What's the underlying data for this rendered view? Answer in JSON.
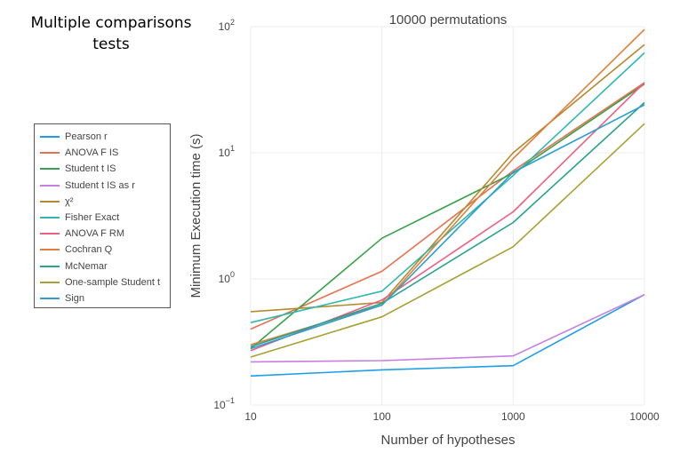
{
  "side_title_lines": [
    "Multiple comparisons",
    "tests"
  ],
  "chart_data": {
    "type": "line",
    "title": "10000 permutations",
    "xlabel": "Number of hypotheses",
    "ylabel": "Minimum Execution time (s)",
    "x_scale": "log",
    "y_scale": "log",
    "x": [
      10,
      100,
      1000,
      10000
    ],
    "xlim": [
      10,
      10000
    ],
    "ylim": [
      0.1,
      100
    ],
    "x_ticks": [
      {
        "value": 10,
        "label": "10"
      },
      {
        "value": 100,
        "label": "100"
      },
      {
        "value": 1000,
        "label": "1000"
      },
      {
        "value": 10000,
        "label": "10000"
      }
    ],
    "y_ticks": [
      {
        "value": 0.1,
        "base": "10",
        "exp": "−1"
      },
      {
        "value": 1,
        "base": "10",
        "exp": "0"
      },
      {
        "value": 10,
        "base": "10",
        "exp": "1"
      },
      {
        "value": 100,
        "base": "10",
        "exp": "2"
      }
    ],
    "grid": true,
    "legend_position": "left, outside plot",
    "series": [
      {
        "name": "Pearson r",
        "color": "#1f9ee8",
        "values": [
          0.17,
          0.19,
          0.205,
          0.75
        ]
      },
      {
        "name": "ANOVA F IS",
        "color": "#e8704f",
        "values": [
          0.4,
          1.15,
          7.2,
          36
        ]
      },
      {
        "name": "Student t IS",
        "color": "#3aa14a",
        "values": [
          0.28,
          2.1,
          6.9,
          35
        ]
      },
      {
        "name": "Student t IS as r",
        "color": "#c77ee0",
        "values": [
          0.22,
          0.225,
          0.245,
          0.75
        ]
      },
      {
        "name": "χ²",
        "color": "#b38a2e",
        "values": [
          0.55,
          0.65,
          10,
          72
        ]
      },
      {
        "name": "Fisher Exact",
        "color": "#2fb8b0",
        "values": [
          0.45,
          0.8,
          6.6,
          62
        ]
      },
      {
        "name": "ANOVA F RM",
        "color": "#ec5f82",
        "values": [
          0.27,
          0.68,
          3.4,
          36
        ]
      },
      {
        "name": "Cochran Q",
        "color": "#e07f39",
        "values": [
          0.3,
          0.62,
          9.0,
          95
        ]
      },
      {
        "name": "McNemar",
        "color": "#28a38c",
        "values": [
          0.29,
          0.64,
          2.8,
          25
        ]
      },
      {
        "name": "One-sample Student t",
        "color": "#a8a032",
        "values": [
          0.24,
          0.5,
          1.8,
          17
        ]
      },
      {
        "name": "Sign",
        "color": "#2c9fd1",
        "values": [
          0.28,
          0.62,
          7.0,
          24
        ]
      }
    ]
  }
}
